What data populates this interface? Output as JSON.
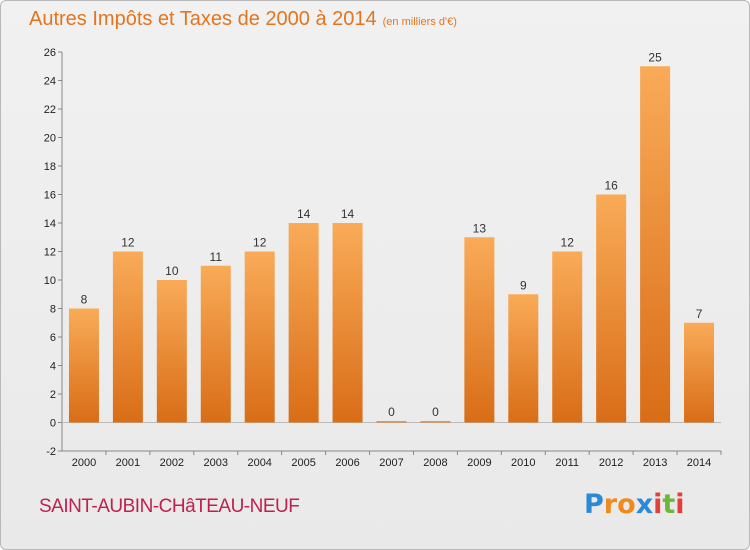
{
  "header": {
    "title": "Autres Impôts et Taxes de 2000 à 2014",
    "unit": "(en milliers d'€)"
  },
  "footer": {
    "commune": "SAINT-AUBIN-CHâTEAU-NEUF",
    "logo_letters": [
      "P",
      "r",
      "o",
      "x",
      "i",
      "t",
      "i"
    ],
    "logo_colors": [
      "#2a8ad8",
      "#f08a1c",
      "#f08a1c",
      "#2a8ad8",
      "#e2403a",
      "#6cb83a",
      "#e2403a"
    ]
  },
  "colors": {
    "bar_top": "#f9ab58",
    "bar_bottom": "#d96d17",
    "title": "#e4751f",
    "commune": "#c02050"
  },
  "chart_data": {
    "type": "bar",
    "categories": [
      "2000",
      "2001",
      "2002",
      "2003",
      "2004",
      "2005",
      "2006",
      "2007",
      "2008",
      "2009",
      "2010",
      "2011",
      "2012",
      "2013",
      "2014"
    ],
    "values": [
      8,
      12,
      10,
      11,
      12,
      14,
      14,
      0,
      0,
      13,
      9,
      12,
      16,
      25,
      7
    ],
    "title": "Autres Impôts et Taxes de 2000 à 2014",
    "xlabel": "",
    "ylabel": "",
    "ylim": [
      -2,
      26
    ],
    "yticks": [
      -2,
      0,
      2,
      4,
      6,
      8,
      10,
      12,
      14,
      16,
      18,
      20,
      22,
      24,
      26
    ],
    "grid": false,
    "legend": "none"
  }
}
